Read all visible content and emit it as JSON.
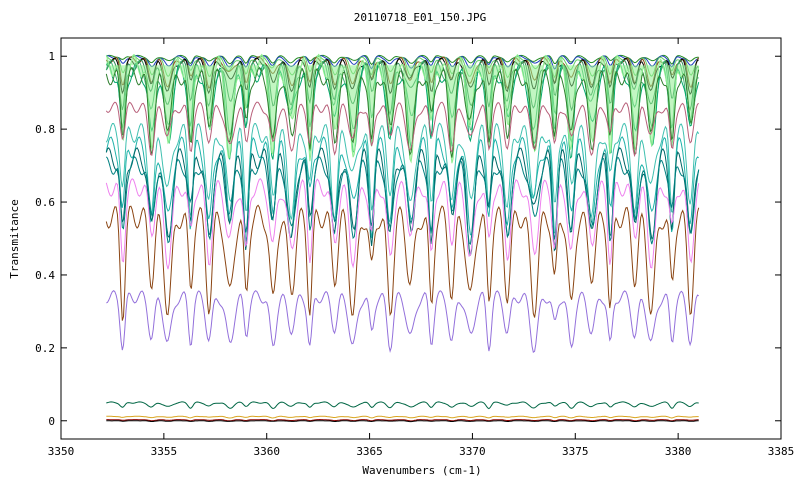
{
  "chart_data": {
    "type": "line",
    "title": "20110718_E01_150.JPG",
    "xlabel": "Wavenumbers (cm-1)",
    "ylabel": "Transmitance",
    "xlim": [
      3350,
      3385
    ],
    "ylim": [
      -0.05,
      1.05
    ],
    "x_ticks": [
      3350,
      3355,
      3360,
      3365,
      3370,
      3375,
      3380,
      3385
    ],
    "y_ticks": [
      0,
      0.2,
      0.4,
      0.6,
      0.8,
      1
    ],
    "x_tick_labels": [
      "3350",
      "3355",
      "3360",
      "3365",
      "3370",
      "3375",
      "3380",
      "3385"
    ],
    "y_tick_labels": [
      "0",
      "0.2",
      "0.4",
      "0.6",
      "0.8",
      "1"
    ],
    "x_range": [
      3352.2,
      3381.0
    ],
    "grid": false,
    "legend": "none",
    "absorption_lines": [
      3353.0,
      3354.4,
      3355.2,
      3356.3,
      3357.2,
      3358.2,
      3359.0,
      3360.3,
      3361.2,
      3362.1,
      3363.3,
      3364.2,
      3365.1,
      3366.0,
      3367.0,
      3368.0,
      3369.0,
      3369.9,
      3370.8,
      3371.7,
      3373.0,
      3374.0,
      3374.8,
      3375.8,
      3376.7,
      3377.9,
      3378.7,
      3379.7,
      3380.6
    ],
    "series": [
      {
        "color": "#228B22",
        "baseline": 1.0,
        "depth": 0.02,
        "fill": false
      },
      {
        "color": "#1f3fbf",
        "baseline": 0.998,
        "depth": 0.03,
        "fill": false
      },
      {
        "color": "#66cc66",
        "baseline": 0.995,
        "depth": 0.05,
        "fill": false
      },
      {
        "color": "#8b4513",
        "baseline": 0.99,
        "depth": 0.07,
        "fill": false
      },
      {
        "color": "#000000",
        "baseline": 0.985,
        "depth": 0.08,
        "fill": false
      },
      {
        "color": "#2e8b57",
        "baseline": 0.975,
        "depth": 0.12,
        "fill": false
      },
      {
        "color": "#3cb371",
        "baseline": 0.965,
        "depth": 0.18,
        "fill": false
      },
      {
        "color": "#00a86b",
        "baseline": 0.955,
        "depth": 0.22,
        "fill": false
      },
      {
        "color": "#90ee90",
        "baseline": 0.975,
        "depth": 0.25,
        "fill": true
      },
      {
        "color": "#2f7f2f",
        "baseline": 0.945,
        "depth": 0.2,
        "fill": false
      },
      {
        "color": "#b8607a",
        "baseline": 0.86,
        "depth": 0.12,
        "fill": false
      },
      {
        "color": "#40c0b0",
        "baseline": 0.79,
        "depth": 0.22,
        "fill": false
      },
      {
        "color": "#20b2aa",
        "baseline": 0.75,
        "depth": 0.24,
        "fill": false
      },
      {
        "color": "#006666",
        "baseline": 0.72,
        "depth": 0.24,
        "fill": false
      },
      {
        "color": "#008080",
        "baseline": 0.7,
        "depth": 0.2,
        "fill": false
      },
      {
        "color": "#ee82ee",
        "baseline": 0.64,
        "depth": 0.2,
        "fill": false
      },
      {
        "color": "#8b4513",
        "baseline": 0.56,
        "depth": 0.26,
        "fill": false
      },
      {
        "color": "#9370db",
        "baseline": 0.34,
        "depth": 0.14,
        "fill": false
      },
      {
        "color": "#006644",
        "baseline": 0.05,
        "depth": 0.015,
        "fill": false
      },
      {
        "color": "#daa520",
        "baseline": 0.012,
        "depth": 0.004,
        "fill": false
      },
      {
        "color": "#8b0000",
        "baseline": 0.003,
        "depth": 0.003,
        "fill": false
      },
      {
        "color": "#000000",
        "baseline": 0.0,
        "depth": 0.002,
        "fill": false
      }
    ]
  }
}
